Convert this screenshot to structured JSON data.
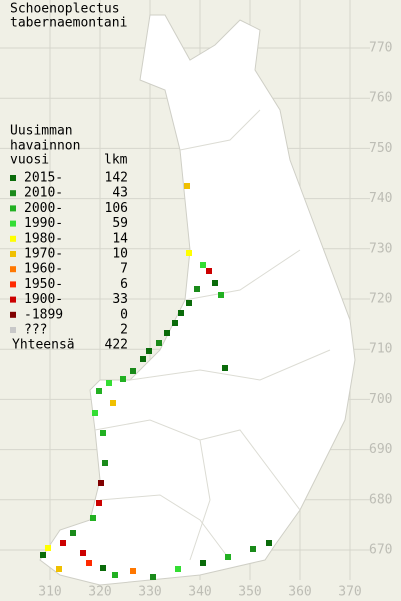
{
  "title": [
    "Schoenoplectus",
    "tabernaemontani"
  ],
  "legend": {
    "heading": [
      "Uusimman",
      "havainnon",
      "vuosi"
    ],
    "count_heading": "lkm",
    "rows": [
      {
        "label": "2015-",
        "count": "142",
        "color": "#0a6b0a"
      },
      {
        "label": "2010-",
        "count": "43",
        "color": "#1a8a1a"
      },
      {
        "label": "2000-",
        "count": "106",
        "color": "#22b022"
      },
      {
        "label": "1990-",
        "count": "59",
        "color": "#33dd33"
      },
      {
        "label": "1980-",
        "count": "14",
        "color": "#ffff00"
      },
      {
        "label": "1970-",
        "count": "10",
        "color": "#f0c000"
      },
      {
        "label": "1960-",
        "count": "7",
        "color": "#ff7700"
      },
      {
        "label": "1950-",
        "count": "6",
        "color": "#ff2a00"
      },
      {
        "label": "1900-",
        "count": "33",
        "color": "#cc0000"
      },
      {
        "label": "-1899",
        "count": "0",
        "color": "#800000"
      },
      {
        "label": " ???",
        "count": "2",
        "color": "#c8c8c8"
      }
    ],
    "total": {
      "label": "Yhteensä",
      "count": "422"
    }
  },
  "axes": {
    "x_ticks": [
      310,
      320,
      330,
      340,
      350,
      360,
      370
    ],
    "y_ticks": [
      670,
      680,
      690,
      700,
      710,
      720,
      730,
      740,
      750,
      760,
      770
    ]
  }
}
